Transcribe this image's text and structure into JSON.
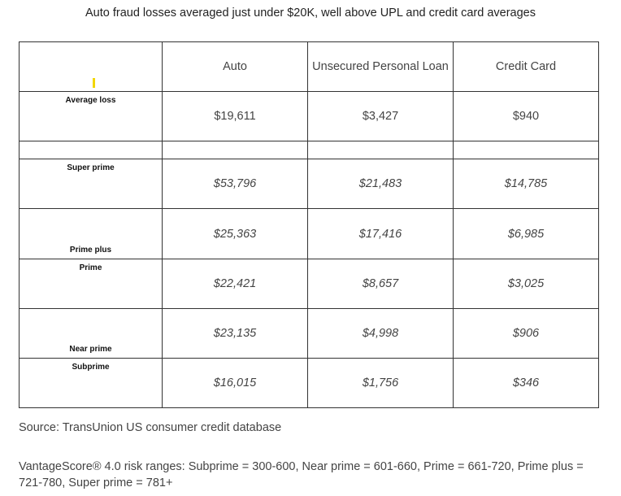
{
  "title": "Auto fraud losses averaged just under $20K, well above UPL and credit card averages",
  "table": {
    "header": [
      null,
      "Auto",
      "Unsecured Personal Loan",
      "Credit Card"
    ],
    "rows": [
      [
        "Average loss",
        "$19,611",
        "$3,427",
        "$940"
      ],
      [
        null,
        null,
        null,
        null
      ],
      [
        "Super prime",
        "$53,796",
        "$21,483",
        "$14,785"
      ],
      [
        "Prime plus",
        "$25,363",
        "$17,416",
        "$6,985"
      ],
      [
        "Prime",
        "$22,421",
        "$8,657",
        "$3,025"
      ],
      [
        "Near prime",
        "$23,135",
        "$4,998",
        "$906"
      ],
      [
        "Subprime",
        "$16,015",
        "$1,756",
        "$346"
      ]
    ]
  },
  "source": "Source: TransUnion US consumer credit database",
  "note": "VantageScore® 4.0 risk ranges: Subprime = 300-600, Near prime = 601-660, Prime = 661-720, Prime plus = 721-780, Super prime = 781+"
}
